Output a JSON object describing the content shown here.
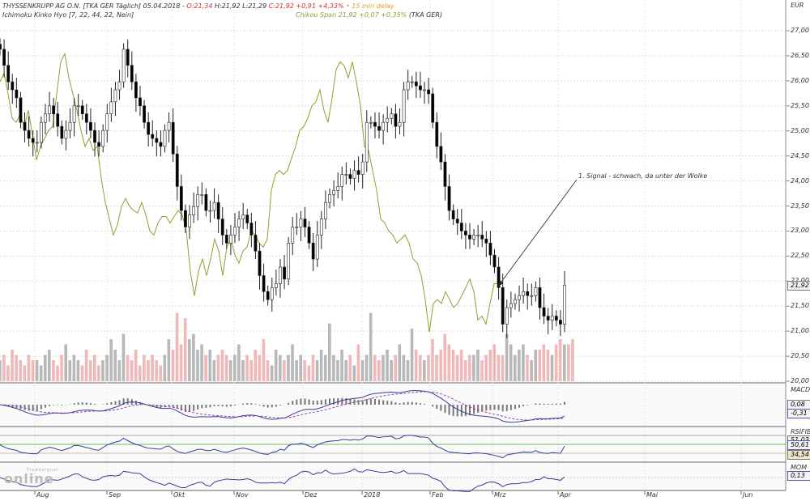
{
  "header": {
    "line1_a": "THYSSENKRUPP AG O.N. [TKA GER Täglich] 05.04.2018 - ",
    "open": "O:21,34",
    "hl": " H:21,92 L:21,29 ",
    "close": "C:21,92 +0,91 +4,33%",
    "delay": " • 15 min delay",
    "line2": "Ichimoku Kinko Hyo [7, 22, 44, 22, Nein]",
    "chikou": "Chikou Span 21,92 +0,07 +0,35%",
    "chikou_sym": " (TKA GER)"
  },
  "annotation": "1. Signal - schwach, da unter der Wolke",
  "logo": {
    "small": "Tradesignal",
    "big": "online"
  },
  "axis": {
    "currency": "EUR",
    "ticks": [
      "27,00",
      "26,50",
      "26,00",
      "25,50",
      "25,00",
      "24,50",
      "24,00",
      "23,50",
      "23,00",
      "22,50",
      "22,00",
      "21,50",
      "21,00",
      "20,50",
      "20,00"
    ]
  },
  "tags": {
    "price": "21,92",
    "macd_label": "MACDA",
    "macd1": "0,08",
    "macd2": "-0,31",
    "rsi_label": "RSIFIB",
    "rsi0": "51,03",
    "rsi1": "50,61",
    "rsi2": "34,54",
    "mom_label": "MOM",
    "mom": "0,13"
  },
  "months": [
    "Aug",
    "Sep",
    "Okt",
    "Nov",
    "Dez",
    "2018",
    "Feb",
    "Mrz",
    "Apr",
    "Mai",
    "Jun"
  ],
  "colors": {
    "up": "#ffffff",
    "down": "#000000",
    "chikou": "#9a9a30",
    "vol_up": "#b8b8b8",
    "vol_down": "#f0b8b8",
    "ind": "#3a3a9a"
  },
  "chart_data": {
    "type": "candlestick",
    "title": "THYSSENKRUPP AG O.N. [TKA GER Täglich]",
    "ylabel": "EUR",
    "ylim": [
      20,
      27.2
    ],
    "closes": [
      26.63,
      26.31,
      25.98,
      25.82,
      25.66,
      25.17,
      25.01,
      24.85,
      24.77,
      24.77,
      25.17,
      25.34,
      25.5,
      25.34,
      25.09,
      24.85,
      25.01,
      25.17,
      25.5,
      25.5,
      25.34,
      25.17,
      25.01,
      24.77,
      24.69,
      25.01,
      25.34,
      25.58,
      25.82,
      25.98,
      26.63,
      26.31,
      25.98,
      25.66,
      25.5,
      25.17,
      24.93,
      24.85,
      24.77,
      24.69,
      25.01,
      25.17,
      24.54,
      23.89,
      23.41,
      23.08,
      23.32,
      23.49,
      23.73,
      23.73,
      23.41,
      23.41,
      23.57,
      23.24,
      22.92,
      22.76,
      22.92,
      23.08,
      23.24,
      23.32,
      23.16,
      22.92,
      22.6,
      22.11,
      21.79,
      21.63,
      21.87,
      21.95,
      22.28,
      22.04,
      22.76,
      23.08,
      23.08,
      23.24,
      23.08,
      22.76,
      22.44,
      22.92,
      23.24,
      23.57,
      23.73,
      23.81,
      23.89,
      24.13,
      24.13,
      24.05,
      24.21,
      24.13,
      24.38,
      25.17,
      25.17,
      25.09,
      25.01,
      25.17,
      25.25,
      25.34,
      25.09,
      25.17,
      25.82,
      25.98,
      25.98,
      25.9,
      25.82,
      25.82,
      25.74,
      25.17,
      24.69,
      24.38,
      23.89,
      23.41,
      23.24,
      23.16,
      23.0,
      22.92,
      22.84,
      22.92,
      22.92,
      22.84,
      22.76,
      22.52,
      22.28,
      21.87,
      21.14,
      21.47,
      21.55,
      21.63,
      21.71,
      21.79,
      21.71,
      21.71,
      21.87,
      21.47,
      21.3,
      21.22,
      21.3,
      21.22,
      21.14,
      21.92
    ],
    "volume": [
      4,
      5,
      3,
      6,
      5,
      4,
      3,
      5,
      4,
      4,
      3,
      5,
      6,
      4,
      3,
      5,
      7,
      4,
      5,
      4,
      3,
      6,
      4,
      5,
      3,
      4,
      5,
      8,
      6,
      4,
      9,
      5,
      4,
      6,
      3,
      5,
      4,
      5,
      4,
      3,
      5,
      8,
      6,
      13,
      7,
      12,
      8,
      9,
      6,
      7,
      5,
      6,
      4,
      5,
      6,
      5,
      4,
      5,
      7,
      4,
      5,
      4,
      6,
      5,
      8,
      4,
      3,
      6,
      5,
      4,
      5,
      7,
      4,
      5,
      4,
      3,
      5,
      4,
      6,
      5,
      11,
      5,
      4,
      6,
      4,
      5,
      3,
      7,
      4,
      5,
      13,
      5,
      4,
      5,
      6,
      4,
      5,
      7,
      5,
      4,
      10,
      6,
      5,
      4,
      5,
      8,
      5,
      6,
      9,
      7,
      6,
      5,
      6,
      4,
      5,
      5,
      6,
      4,
      5,
      6,
      7,
      5,
      5,
      9,
      7,
      5,
      6,
      7,
      5,
      4,
      6,
      6,
      7,
      6,
      5,
      7,
      8,
      7,
      7,
      8
    ],
    "chikou": [
      25.98,
      26.15,
      25.74,
      25.25,
      25.17,
      25.34,
      25.09,
      25.41,
      24.93,
      24.42,
      24.69,
      24.85,
      25.01,
      25.09,
      25.74,
      26.38,
      26.54,
      26.06,
      25.74,
      25.41,
      25.01,
      24.69,
      24.85,
      24.61,
      24.69,
      24.05,
      23.57,
      23.24,
      22.92,
      23.13,
      23.49,
      23.65,
      23.49,
      23.41,
      23.36,
      23.57,
      23.32,
      23.0,
      22.92,
      23.16,
      23.29,
      23.29,
      23.16,
      23.29,
      23.41,
      23.32,
      23.0,
      22.19,
      21.71,
      22.19,
      22.44,
      22.11,
      22.44,
      22.84,
      22.6,
      22.11,
      22.68,
      22.84,
      22.52,
      22.36,
      22.6,
      22.68,
      23.0,
      22.92,
      22.76,
      22.68,
      22.84,
      23.81,
      24.13,
      24.21,
      24.13,
      24.21,
      24.46,
      24.69,
      25.01,
      25.09,
      25.25,
      25.5,
      25.58,
      25.82,
      25.41,
      25.17,
      25.66,
      26.23,
      26.38,
      26.3,
      26.06,
      26.38,
      25.98,
      25.5,
      24.69,
      24.61,
      24.21,
      23.81,
      23.24,
      23.16,
      23.0,
      22.92,
      22.76,
      22.84,
      22.92,
      22.76,
      22.44,
      22.36,
      22.11,
      21.63,
      20.98,
      21.55,
      21.63,
      21.55,
      21.79,
      21.63,
      21.47,
      21.55,
      21.71,
      21.87,
      22.04,
      21.79,
      21.22,
      21.3,
      21.14,
      21.55,
      21.95,
      21.95
    ]
  }
}
